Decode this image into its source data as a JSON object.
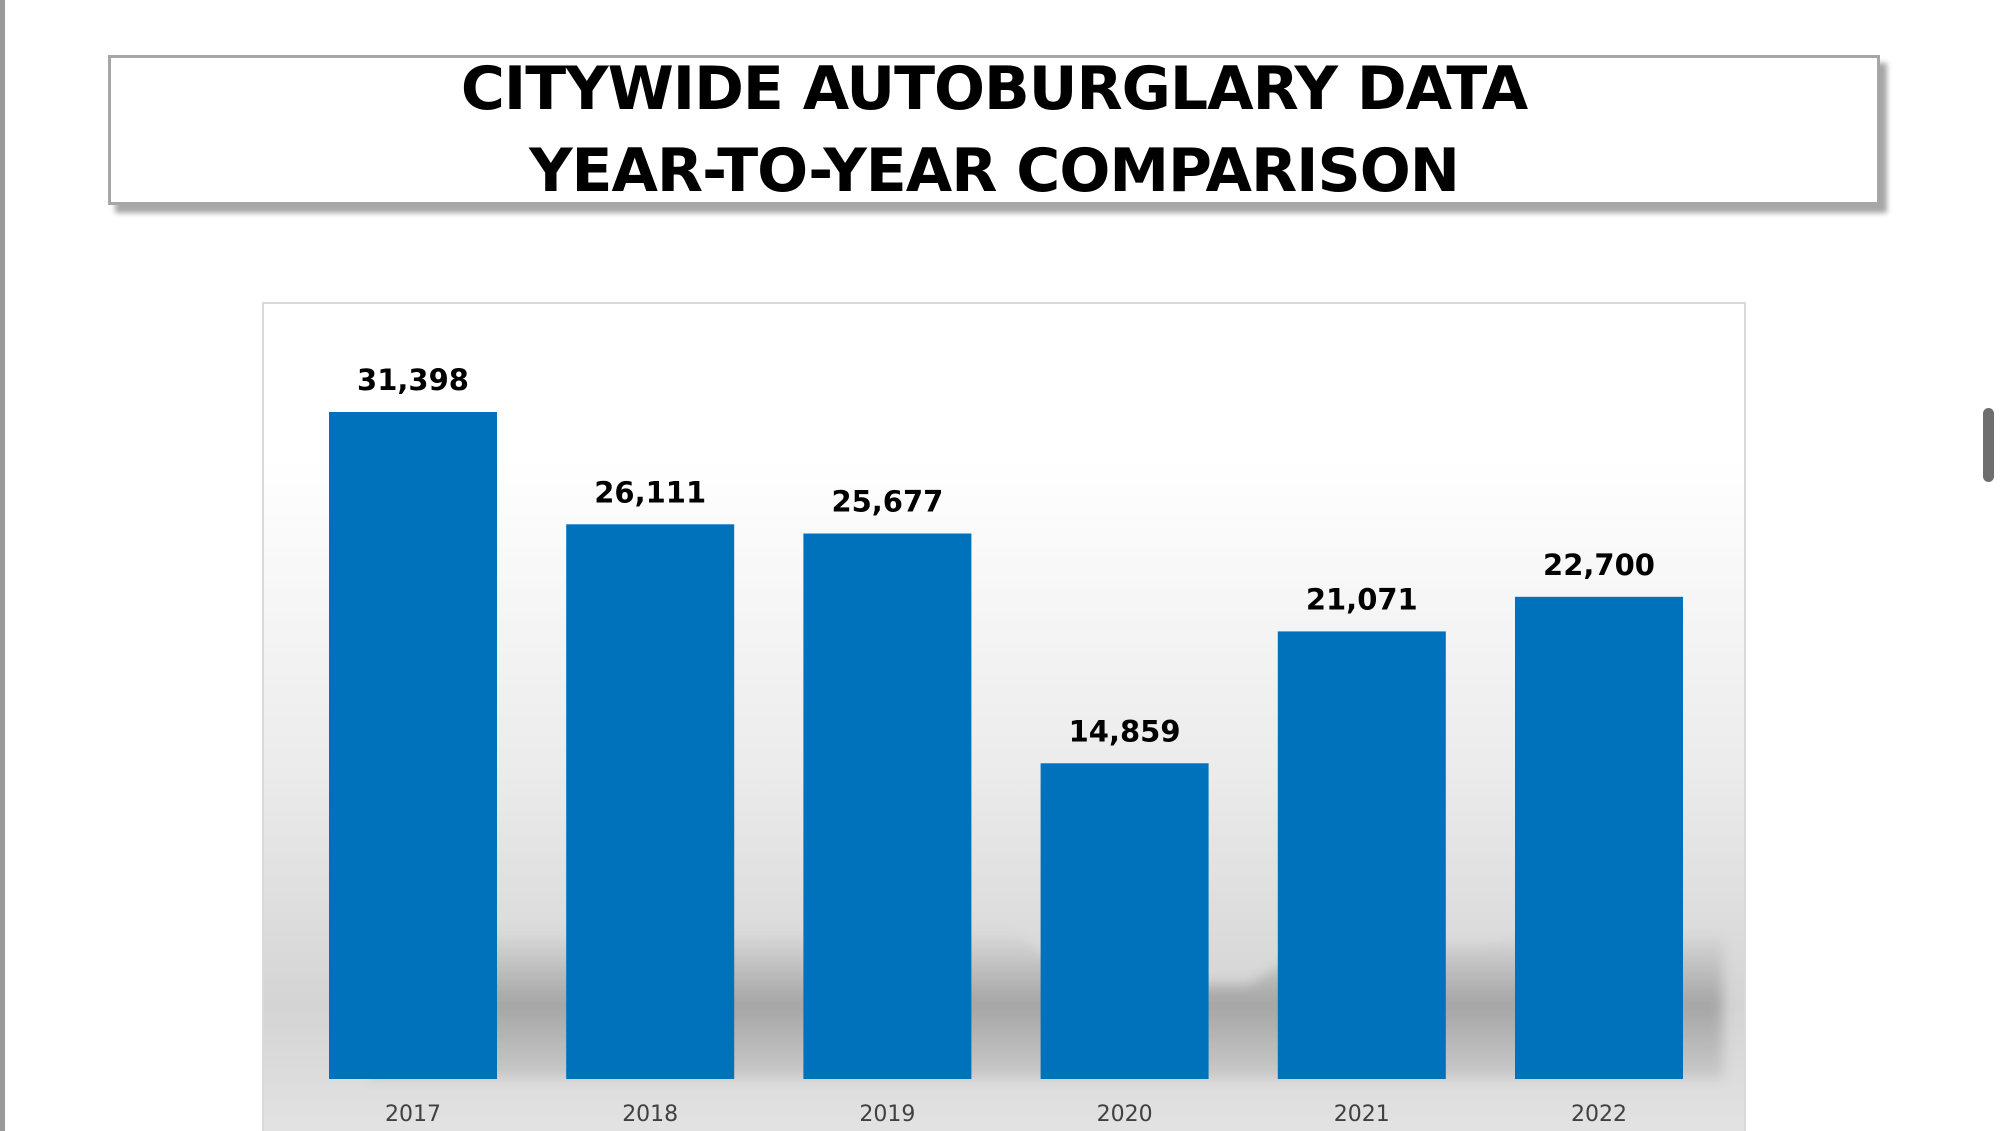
{
  "title": {
    "line1": "CITYWIDE AUTOBURGLARY DATA",
    "line2": "YEAR-TO-YEAR COMPARISON"
  },
  "chart_data": {
    "type": "bar",
    "categories": [
      "2017",
      "2018",
      "2019",
      "2020",
      "2021",
      "2022"
    ],
    "values": [
      31398,
      26111,
      25677,
      14859,
      21071,
      22700
    ],
    "value_labels": [
      "31,398",
      "26,111",
      "25,677",
      "14,859",
      "21,071",
      "22,700"
    ],
    "ylim": [
      0,
      31398
    ],
    "bar_color": "#0072BC",
    "grid": false,
    "legend": "none",
    "title": "CITYWIDE AUTOBURGLARY DATA YEAR-TO-YEAR COMPARISON",
    "xlabel": "",
    "ylabel": ""
  },
  "colors": {
    "bar": "#0072BC",
    "frame_border": "#d9d9d9",
    "title_border": "#a6a6a6"
  }
}
